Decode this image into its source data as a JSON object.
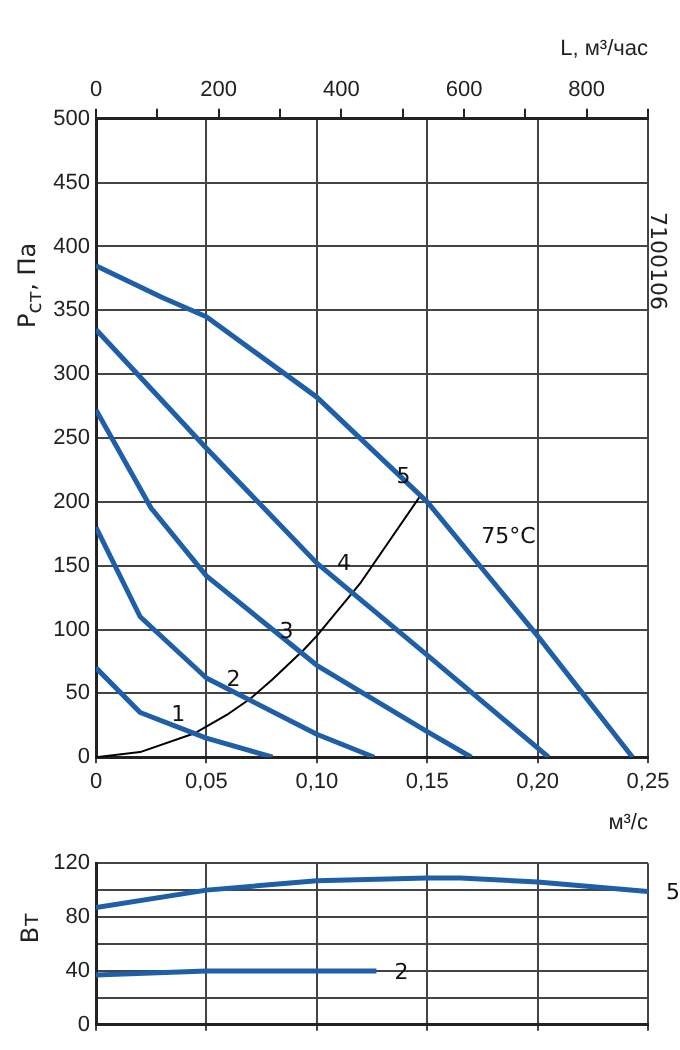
{
  "chart_data": [
    {
      "type": "line",
      "ylabel": "P$_{ст}$, Па",
      "xlabel": "м³/с",
      "x2label": "L, м³/час",
      "xlim": [
        0,
        0.25
      ],
      "xticks": [
        0,
        {
          "value": 0.05,
          "label": "0,05"
        },
        {
          "value": 0.1,
          "label": "0,10"
        },
        {
          "value": 0.15,
          "label": "0,15"
        },
        {
          "value": 0.2,
          "label": "0,20"
        },
        {
          "value": 0.25,
          "label": "0,25"
        }
      ],
      "x2lim": [
        0,
        900
      ],
      "x2ticks": [
        0,
        {
          "value": 100,
          "label": null
        },
        200,
        {
          "value": 300,
          "label": null
        },
        400,
        {
          "value": 500,
          "label": null
        },
        600,
        {
          "value": 700,
          "label": null
        },
        800,
        {
          "value": 900,
          "label": null
        }
      ],
      "ylim": [
        0,
        500
      ],
      "yticks": [
        0,
        50,
        100,
        150,
        200,
        250,
        300,
        350,
        400,
        450,
        500
      ],
      "grid": true,
      "legend": false,
      "series": [
        {
          "color": "#1f5fa8",
          "x": [
            0,
            0.03,
            0.05,
            0.1,
            0.15,
            0.17,
            0.2,
            0.243
          ],
          "values": [
            385,
            360,
            345,
            282,
            200,
            158,
            95,
            0
          ]
        },
        {
          "color": "#1f5fa8",
          "x": [
            0,
            0.05,
            0.1,
            0.15,
            0.205
          ],
          "values": [
            335,
            242,
            152,
            80,
            0
          ]
        },
        {
          "color": "#1f5fa8",
          "x": [
            0,
            0.025,
            0.05,
            0.1,
            0.15,
            0.17
          ],
          "values": [
            272,
            195,
            142,
            72,
            20,
            0
          ]
        },
        {
          "color": "#1f5fa8",
          "x": [
            0,
            0.02,
            0.05,
            0.1,
            0.126
          ],
          "values": [
            180,
            110,
            62,
            18,
            0
          ]
        },
        {
          "color": "#1f5fa8",
          "x": [
            0,
            0.02,
            0.05,
            0.08
          ],
          "values": [
            70,
            35,
            15,
            0
          ]
        },
        {
          "color": "#000000",
          "x": [
            0,
            0.02,
            0.045,
            0.06,
            0.07,
            0.08,
            0.094,
            0.1,
            0.12,
            0.147
          ],
          "values": [
            0,
            4,
            19,
            34,
            46,
            61,
            84,
            95,
            137,
            205
          ]
        }
      ],
      "annotations": [
        {
          "text": "1",
          "x": 0.045,
          "y": 19
        },
        {
          "text": "2",
          "x": 0.07,
          "y": 46
        },
        {
          "text": "3",
          "x": 0.094,
          "y": 84
        },
        {
          "text": "4",
          "x": 0.12,
          "y": 137
        },
        {
          "text": "5",
          "x": 0.147,
          "y": 205
        },
        {
          "text": "75°C",
          "x": 0.17,
          "y": 158
        },
        "7100106"
      ]
    },
    {
      "type": "line",
      "ylabel": "Вт",
      "tick_labels": "y",
      "xlim": [
        0,
        0.25
      ],
      "xticks": [
        0,
        0.05,
        0.1,
        0.15,
        0.2,
        0.25
      ],
      "ylim": [
        0,
        120
      ],
      "yticks": [
        0,
        {
          "value": 20,
          "label": null
        },
        40,
        {
          "value": 60,
          "label": null
        },
        80,
        {
          "value": 100,
          "label": null
        },
        120
      ],
      "grid": true,
      "legend": false,
      "series": [
        {
          "name": "5",
          "color": "#1f5fa8",
          "x": [
            0,
            0.05,
            0.1,
            0.15,
            0.165,
            0.2,
            0.25
          ],
          "values": [
            87,
            100,
            107,
            109,
            109,
            106,
            99
          ]
        },
        {
          "name": "2",
          "color": "#1f5fa8",
          "x": [
            0,
            0.05,
            0.1,
            0.127
          ],
          "values": [
            37,
            40,
            40,
            40
          ]
        }
      ]
    }
  ]
}
